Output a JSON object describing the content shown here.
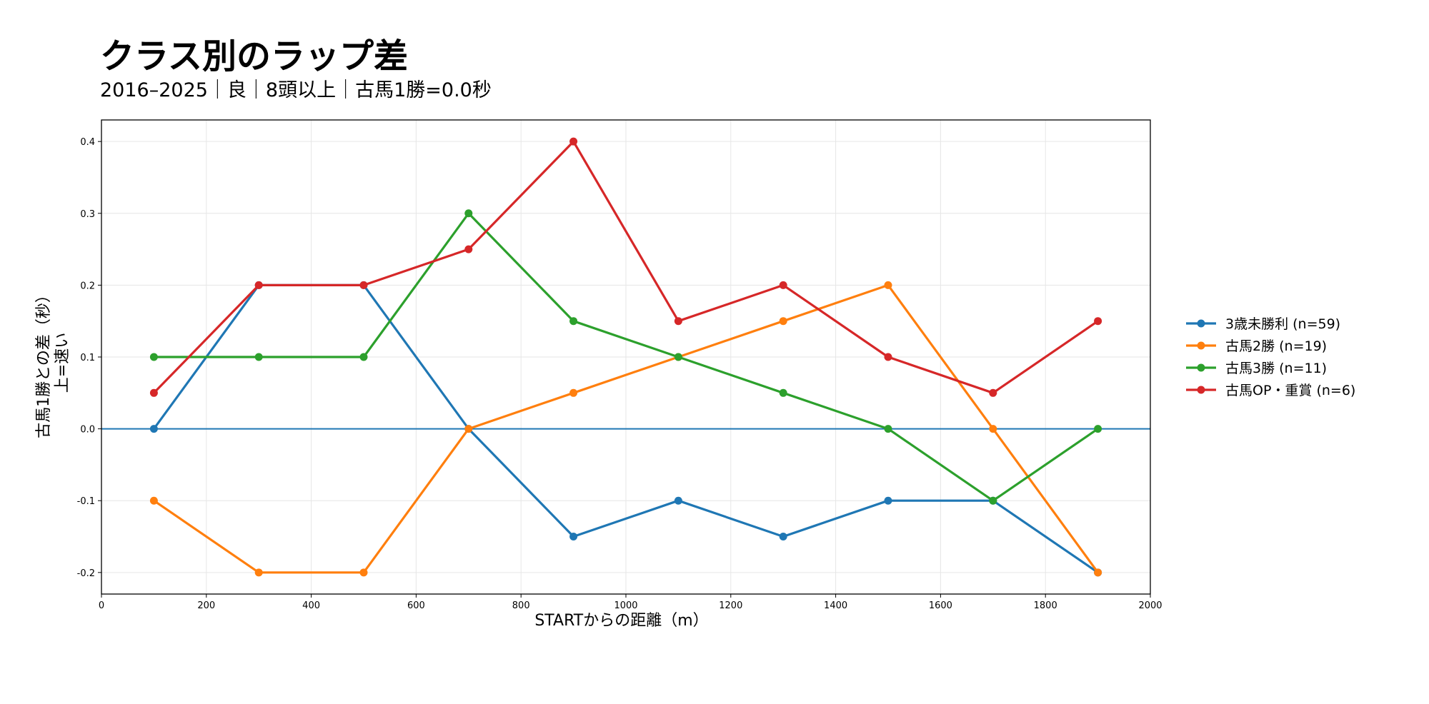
{
  "chart_data": {
    "type": "line",
    "title": "クラス別のラップ差",
    "subtitle": "2016–2025｜良｜8頭以上｜古馬1勝=0.0秒",
    "xlabel": "STARTからの距離（m）",
    "ylabel_line1": "古馬1勝との差（秒）",
    "ylabel_line2": "上=速い",
    "xlim": [
      0,
      2000
    ],
    "ylim": [
      -0.23,
      0.43
    ],
    "xticks": [
      0,
      200,
      400,
      600,
      800,
      1000,
      1200,
      1400,
      1600,
      1800,
      2000
    ],
    "xtick_labels": [
      "0",
      "200",
      "400",
      "600",
      "800",
      "1000",
      "1200",
      "1400",
      "1600",
      "1800",
      "2000"
    ],
    "yticks": [
      -0.2,
      -0.1,
      0.0,
      0.1,
      0.2,
      0.3,
      0.4
    ],
    "ytick_labels": [
      "-0.2",
      "-0.1",
      "0.0",
      "0.1",
      "0.2",
      "0.3",
      "0.4"
    ],
    "grid": true,
    "reference_line": 0.0,
    "reference_color": "#1f77b4",
    "legend_position": "right",
    "x": [
      100,
      300,
      500,
      700,
      900,
      1100,
      1300,
      1500,
      1700,
      1900
    ],
    "series": [
      {
        "name": "3歳未勝利 (n=59)",
        "color": "#1f77b4",
        "values": [
          0.0,
          0.2,
          0.2,
          0.0,
          -0.15,
          -0.1,
          -0.15,
          -0.1,
          -0.1,
          -0.2
        ]
      },
      {
        "name": "古馬2勝 (n=19)",
        "color": "#ff7f0e",
        "values": [
          -0.1,
          -0.2,
          -0.2,
          0.0,
          0.05,
          0.1,
          0.15,
          0.2,
          0.0,
          -0.2
        ]
      },
      {
        "name": "古馬3勝 (n=11)",
        "color": "#2ca02c",
        "values": [
          0.1,
          0.1,
          0.1,
          0.3,
          0.15,
          0.1,
          0.05,
          0.0,
          -0.1,
          0.0
        ]
      },
      {
        "name": "古馬OP・重賞 (n=6)",
        "color": "#d62728",
        "values": [
          0.05,
          0.2,
          0.2,
          0.25,
          0.4,
          0.15,
          0.2,
          0.1,
          0.05,
          0.15
        ]
      }
    ]
  }
}
